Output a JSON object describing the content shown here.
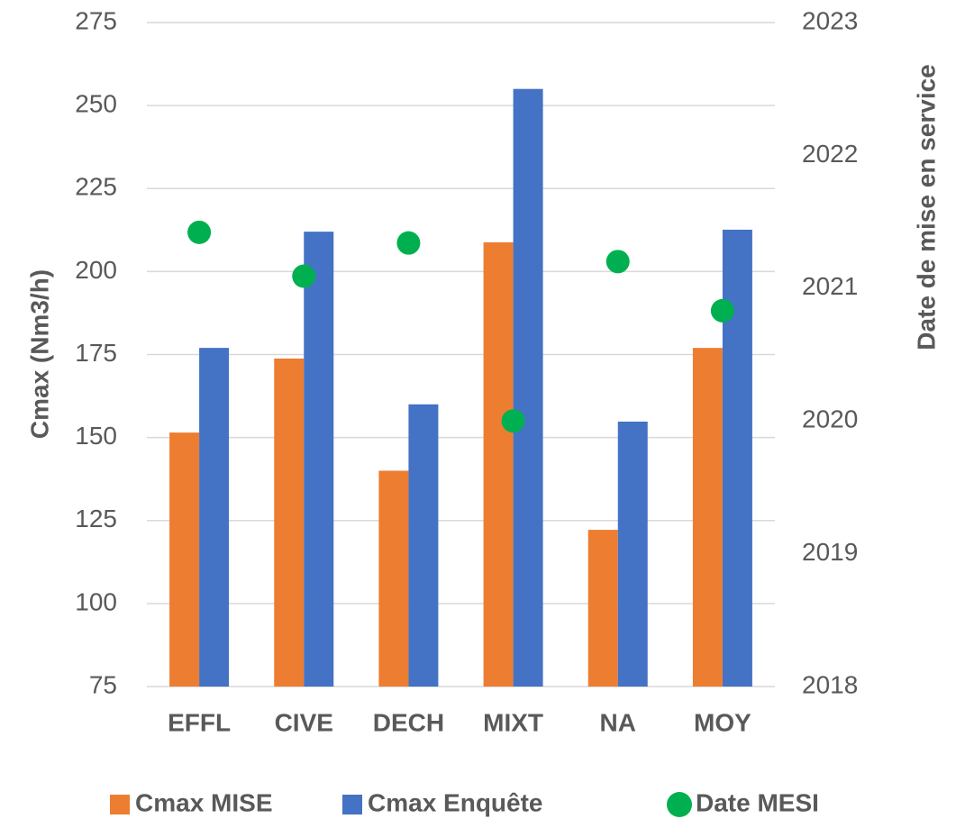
{
  "chart_data": {
    "type": "bar",
    "categories": [
      "EFFL",
      "CIVE",
      "DECH",
      "MIXT",
      "NA",
      "MOY"
    ],
    "series": [
      {
        "name": "Cmax MISE",
        "color": "#ed7d31",
        "values": [
          151.5,
          173.8,
          140,
          208.8,
          122.2,
          177
        ]
      },
      {
        "name": "Cmax Enquête",
        "color": "#4472c4",
        "values": [
          177,
          212,
          160,
          255,
          154.8,
          212.6
        ]
      },
      {
        "name": "Date MESI",
        "color": "#00b050",
        "type": "scatter",
        "axis": "y2",
        "values": [
          2021.42,
          2021.09,
          2021.34,
          2020.0,
          2021.2,
          2020.83
        ]
      }
    ],
    "ylabel": "Cmax (Nm3/h)",
    "y2label": "Date de mise en service",
    "ylim": [
      75,
      275
    ],
    "yticks": [
      75,
      100,
      125,
      150,
      175,
      200,
      225,
      250,
      275
    ],
    "y2lim": [
      2018,
      2023
    ],
    "y2ticks": [
      2018,
      2019,
      2020,
      2021,
      2022,
      2023
    ],
    "grid": true,
    "legend": "bottom"
  }
}
